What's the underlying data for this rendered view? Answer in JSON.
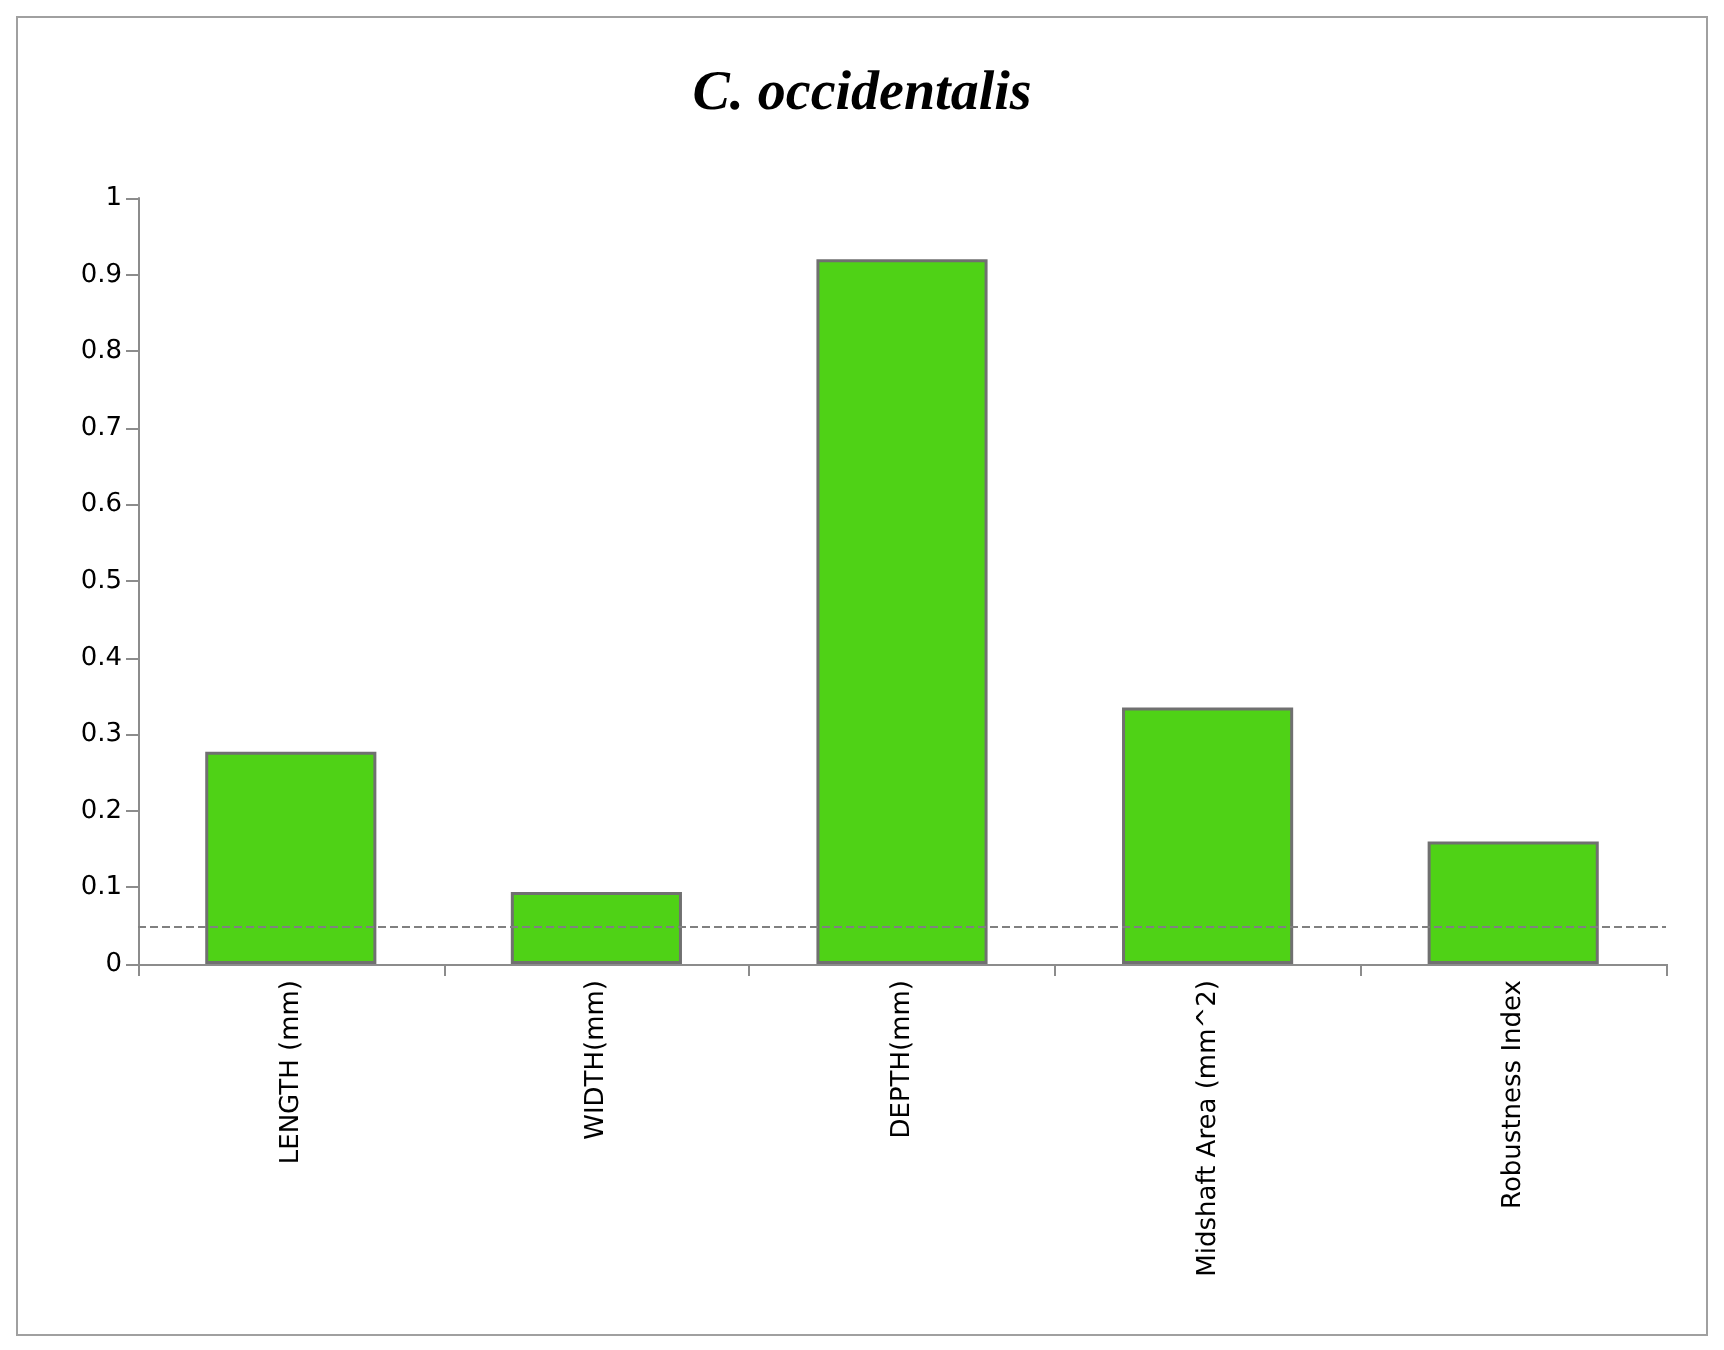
{
  "chart_data": {
    "type": "bar",
    "title": "C. occidentalis",
    "categories": [
      "LENGTH (mm)",
      "WIDTH(mm)",
      "DEPTH(mm)",
      "Midshaft Area (mm^2)",
      "Robustness Index"
    ],
    "values": [
      0.277,
      0.094,
      0.92,
      0.335,
      0.16
    ],
    "color": "#4fd216",
    "ylim": [
      0,
      1
    ],
    "yticks": [
      0,
      0.1,
      0.2,
      0.3,
      0.4,
      0.5,
      0.6,
      0.7,
      0.8,
      0.9,
      1
    ],
    "grid": false,
    "ref_lines": [
      {
        "axis": "y",
        "value": 0.05,
        "color": "#808080",
        "line_style": "dashed"
      }
    ]
  }
}
